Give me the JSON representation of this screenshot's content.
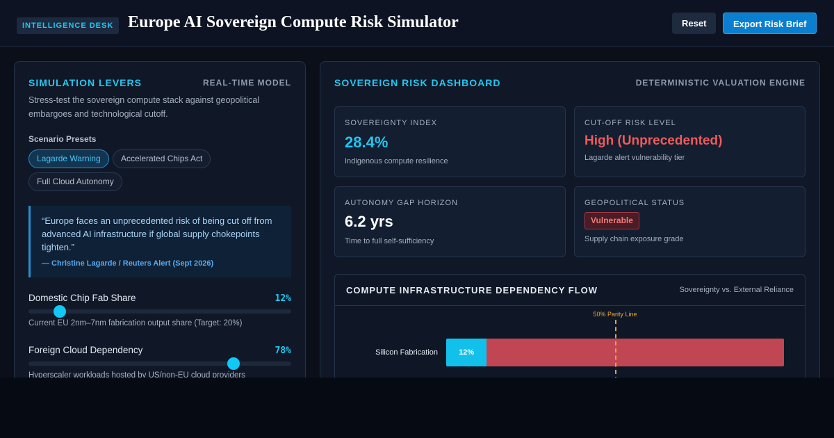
{
  "header": {
    "badge": "INTELLIGENCE DESK",
    "title": "Europe AI Sovereign Compute Risk Simulator",
    "buttons": [
      "Reset",
      "Export Risk Brief"
    ]
  },
  "levers": {
    "title": "SIMULATION LEVERS",
    "tag": "REAL-TIME MODEL",
    "description": "Stress-test the sovereign compute stack against geopolitical embargoes and technological cutoff.",
    "presets_label": "Scenario Presets",
    "presets": [
      "Lagarde Warning",
      "Accelerated Chips Act",
      "Full Cloud Autonomy"
    ],
    "quote": {
      "text": "“Europe faces an unprecedented risk of being cut off from advanced AI infrastructure if global supply chokepoints tighten.”",
      "source": "— Christine Lagarde / Reuters Alert (Sept 2026)"
    },
    "sliders": [
      {
        "label": "Domestic Chip Fab Share",
        "value": 12,
        "value_label": "12%",
        "note": "Current EU 2nm–7nm fabrication output share (Target: 20%)"
      },
      {
        "label": "Foreign Cloud Dependency",
        "value": 78,
        "value_label": "78%",
        "note": "Hyperscaler workloads hosted by US/non-EU cloud providers"
      }
    ]
  },
  "dashboard": {
    "title": "SOVEREIGN RISK DASHBOARD",
    "tag": "DETERMINISTIC VALUATION ENGINE",
    "cards": [
      {
        "label": "SOVEREIGNTY INDEX",
        "value": "28.4%",
        "note": "Indigenous compute resilience"
      },
      {
        "label": "CUT-OFF RISK LEVEL",
        "value": "High (Unprecedented)",
        "note": "Lagarde alert vulnerability tier"
      },
      {
        "label": "AUTONOMY GAP HORIZON",
        "value": "6.2 yrs",
        "note": "Time to full self-sufficiency"
      },
      {
        "label": "GEOPOLITICAL STATUS",
        "value": "Vulnerable",
        "note": "Supply chain exposure grade"
      }
    ],
    "flow": {
      "title": "COMPUTE INFRASTRUCTURE DEPENDENCY FLOW",
      "subtitle": "Sovereignty vs. External Reliance",
      "parity": 50,
      "parity_label": "50% Parity Line",
      "rows": [
        {
          "label": "Silicon Fabrication",
          "values": [
            12,
            88
          ],
          "value_labels": [
            "12%"
          ]
        }
      ]
    }
  }
}
